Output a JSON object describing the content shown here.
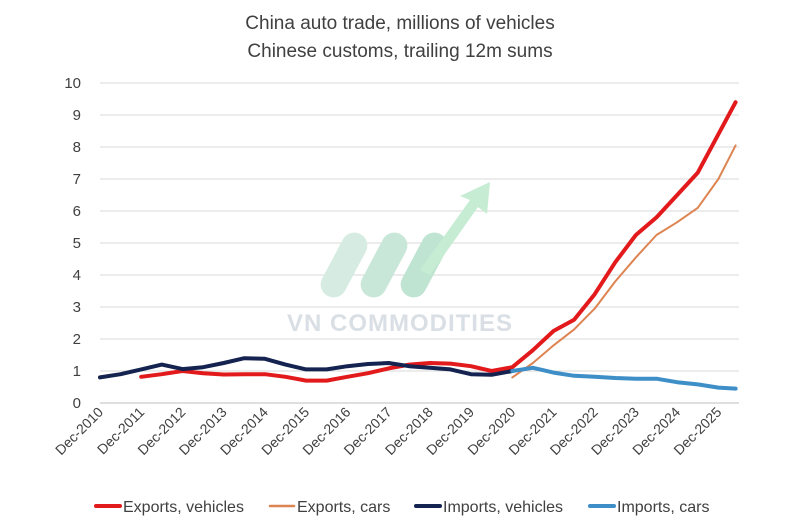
{
  "chart_data": {
    "type": "line",
    "title": "China auto trade, millions of vehicles",
    "subtitle": "Chinese customs, trailing 12m sums",
    "xlabel": "",
    "ylabel": "",
    "x_tick_labels": [
      "Dec-2010",
      "Dec-2011",
      "Dec-2012",
      "Dec-2013",
      "Dec-2014",
      "Dec-2015",
      "Dec-2016",
      "Dec-2017",
      "Dec-2018",
      "Dec-2019",
      "Dec-2020",
      "Dec-2021",
      "Dec-2022",
      "Dec-2023",
      "Dec-2024",
      "Dec-2025"
    ],
    "ylim": [
      0,
      10
    ],
    "y_ticks": [
      0,
      1,
      2,
      3,
      4,
      5,
      6,
      7,
      8,
      9,
      10
    ],
    "grid": "horizontal",
    "legend_position": "bottom",
    "series": [
      {
        "name": "Exports, vehicles",
        "color": "#e31a1c",
        "width": 4,
        "points": [
          [
            "2011-12",
            0.82
          ],
          [
            "2012-06",
            0.9
          ],
          [
            "2012-12",
            1.0
          ],
          [
            "2013-06",
            0.93
          ],
          [
            "2013-12",
            0.89
          ],
          [
            "2014-06",
            0.9
          ],
          [
            "2014-12",
            0.9
          ],
          [
            "2015-06",
            0.82
          ],
          [
            "2015-12",
            0.7
          ],
          [
            "2016-06",
            0.7
          ],
          [
            "2016-12",
            0.82
          ],
          [
            "2017-06",
            0.93
          ],
          [
            "2017-12",
            1.08
          ],
          [
            "2018-06",
            1.2
          ],
          [
            "2018-12",
            1.25
          ],
          [
            "2019-06",
            1.23
          ],
          [
            "2019-12",
            1.15
          ],
          [
            "2020-06",
            1.0
          ],
          [
            "2020-12",
            1.12
          ],
          [
            "2021-06",
            1.65
          ],
          [
            "2021-12",
            2.25
          ],
          [
            "2022-06",
            2.6
          ],
          [
            "2022-12",
            3.4
          ],
          [
            "2023-06",
            4.4
          ],
          [
            "2023-12",
            5.25
          ],
          [
            "2024-06",
            5.8
          ],
          [
            "2024-12",
            6.5
          ],
          [
            "2025-06",
            7.2
          ],
          [
            "2025-12",
            8.4
          ],
          [
            "2026-05",
            9.4
          ]
        ]
      },
      {
        "name": "Exports, cars",
        "color": "#dd8452",
        "width": 2,
        "points": [
          [
            "2020-12",
            0.8
          ],
          [
            "2021-06",
            1.25
          ],
          [
            "2021-12",
            1.8
          ],
          [
            "2022-06",
            2.3
          ],
          [
            "2022-12",
            2.95
          ],
          [
            "2023-06",
            3.8
          ],
          [
            "2023-12",
            4.55
          ],
          [
            "2024-06",
            5.25
          ],
          [
            "2024-12",
            5.65
          ],
          [
            "2025-06",
            6.1
          ],
          [
            "2025-12",
            7.0
          ],
          [
            "2026-05",
            8.05
          ]
        ]
      },
      {
        "name": "Imports, vehicles",
        "color": "#14234f",
        "width": 4,
        "points": [
          [
            "2010-12",
            0.8
          ],
          [
            "2011-06",
            0.9
          ],
          [
            "2011-12",
            1.05
          ],
          [
            "2012-06",
            1.2
          ],
          [
            "2012-12",
            1.06
          ],
          [
            "2013-06",
            1.12
          ],
          [
            "2013-12",
            1.25
          ],
          [
            "2014-06",
            1.4
          ],
          [
            "2014-12",
            1.38
          ],
          [
            "2015-06",
            1.2
          ],
          [
            "2015-12",
            1.05
          ],
          [
            "2016-06",
            1.05
          ],
          [
            "2016-12",
            1.15
          ],
          [
            "2017-06",
            1.22
          ],
          [
            "2017-12",
            1.25
          ],
          [
            "2018-06",
            1.15
          ],
          [
            "2018-12",
            1.1
          ],
          [
            "2019-06",
            1.05
          ],
          [
            "2019-12",
            0.9
          ],
          [
            "2020-06",
            0.88
          ],
          [
            "2020-12",
            1.0
          ]
        ]
      },
      {
        "name": "Imports, cars",
        "color": "#3e8ec8",
        "width": 4,
        "points": [
          [
            "2020-12",
            1.0
          ],
          [
            "2021-06",
            1.1
          ],
          [
            "2021-12",
            0.95
          ],
          [
            "2022-06",
            0.85
          ],
          [
            "2022-12",
            0.82
          ],
          [
            "2023-06",
            0.78
          ],
          [
            "2023-12",
            0.76
          ],
          [
            "2024-06",
            0.76
          ],
          [
            "2024-12",
            0.65
          ],
          [
            "2025-06",
            0.58
          ],
          [
            "2025-12",
            0.48
          ],
          [
            "2026-05",
            0.45
          ]
        ]
      }
    ]
  },
  "watermark": {
    "text": "VN COMMODITIES",
    "color": "#cfe8dc"
  }
}
